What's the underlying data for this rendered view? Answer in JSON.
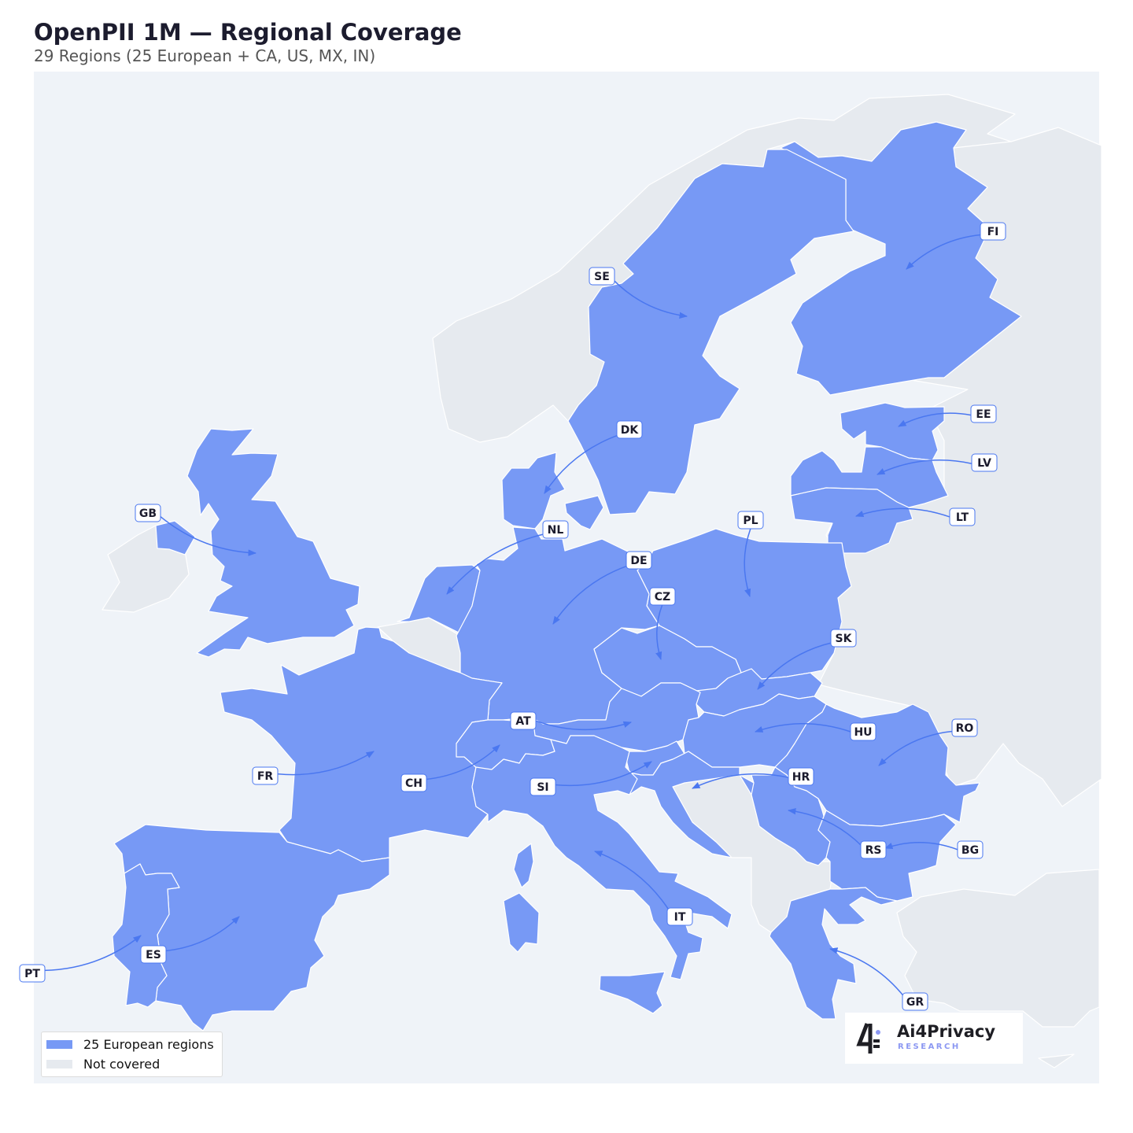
{
  "header": {
    "title": "OpenPII 1M — Regional Coverage",
    "subtitle": "29 Regions (25 European + CA, US, MX, IN)"
  },
  "map": {
    "covered_regions": [
      "FI",
      "SE",
      "EE",
      "LV",
      "LT",
      "DK",
      "GB",
      "NL",
      "PL",
      "DE",
      "CZ",
      "SK",
      "AT",
      "HU",
      "RO",
      "FR",
      "CH",
      "SI",
      "HR",
      "RS",
      "BG",
      "IT",
      "ES",
      "PT",
      "GR"
    ],
    "colors": {
      "covered": "#7799f5",
      "not_covered": "#e6eaef",
      "ocean": "#eff3f8",
      "label_border": "#4a77f0",
      "arrow": "#4a77f0"
    }
  },
  "legend": {
    "items": [
      {
        "label": "25 European regions",
        "color": "#7799f5"
      },
      {
        "label": "Not covered",
        "color": "#e6eaef"
      }
    ]
  },
  "logo": {
    "name": "Ai4Privacy",
    "sub": "RESEARCH"
  }
}
